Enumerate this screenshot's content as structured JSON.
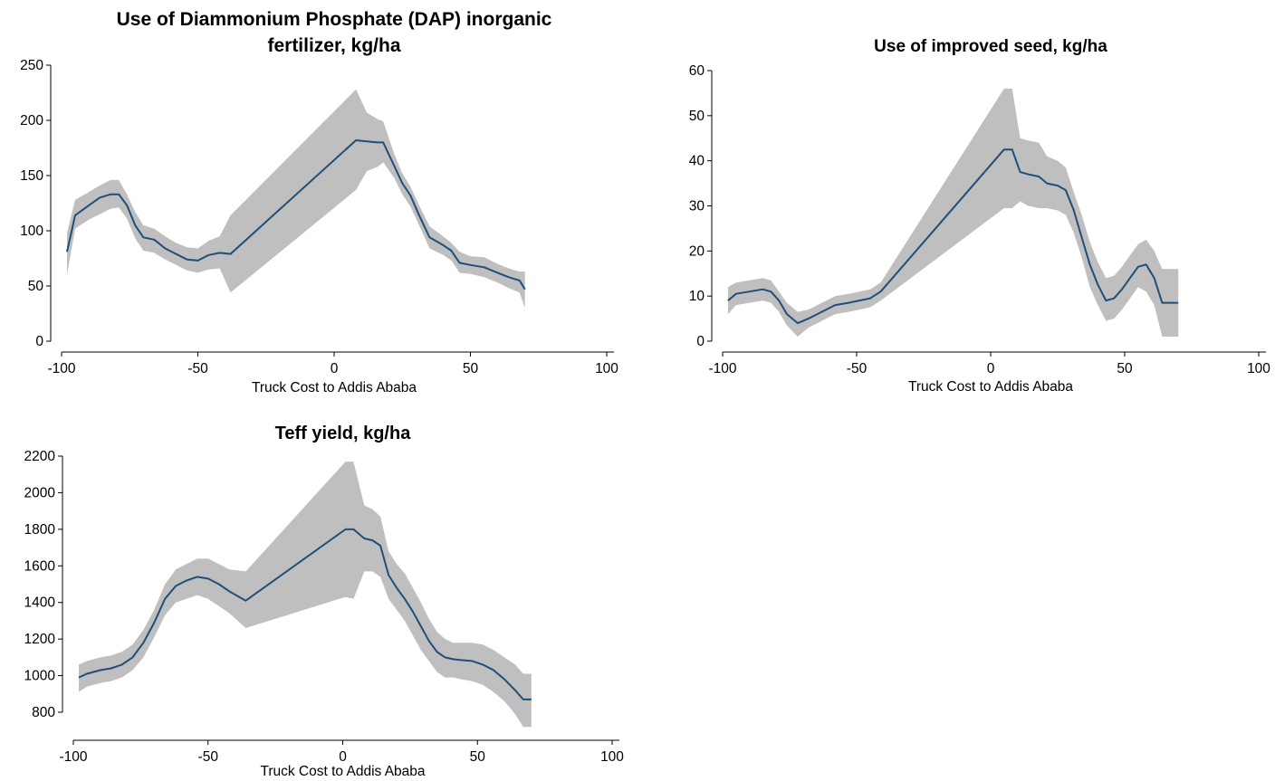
{
  "chart_data": [
    {
      "type": "line",
      "title_lines": [
        "Use of Diammonium Phosphate (DAP) inorganic",
        "fertilizer, kg/ha"
      ],
      "xlabel": "Truck Cost to Addis Ababa",
      "ylabel": "",
      "xlim": [
        -100,
        100
      ],
      "ylim": [
        0,
        250
      ],
      "xticks": [
        -100,
        -50,
        0,
        50,
        100
      ],
      "yticks": [
        0,
        50,
        100,
        150,
        200,
        250
      ],
      "grid": false,
      "colors": {
        "line": "#1f4e79",
        "band": "#bfbfbf"
      },
      "series": [
        {
          "x": [
            -98,
            -95,
            -90,
            -86,
            -82,
            -79,
            -76,
            -73,
            -70,
            -66,
            -62,
            -58,
            -54,
            -50,
            -46,
            -42,
            -38,
            8,
            12,
            16,
            18,
            22,
            25,
            28,
            31,
            35,
            40,
            43,
            46,
            50,
            55,
            60,
            64,
            68,
            70
          ],
          "y": [
            81,
            114,
            123,
            130,
            133,
            133,
            123,
            105,
            94,
            92,
            84,
            79,
            74,
            73,
            78,
            80,
            79,
            182,
            181,
            180,
            180,
            159,
            143,
            132,
            115,
            94,
            87,
            82,
            71,
            69,
            67,
            62,
            58,
            55,
            47
          ],
          "upper": [
            98,
            128,
            135,
            141,
            146,
            146,
            133,
            117,
            105,
            102,
            95,
            89,
            85,
            84,
            91,
            95,
            114,
            228,
            207,
            201,
            199,
            170,
            152,
            140,
            124,
            104,
            95,
            89,
            81,
            77,
            76,
            70,
            66,
            63,
            63
          ],
          "lower": [
            60,
            102,
            110,
            115,
            120,
            121,
            111,
            93,
            82,
            80,
            74,
            69,
            64,
            62,
            65,
            66,
            44,
            137,
            154,
            158,
            162,
            148,
            133,
            122,
            106,
            84,
            78,
            73,
            62,
            61,
            58,
            53,
            48,
            44,
            30
          ]
        }
      ]
    },
    {
      "type": "line",
      "title_lines": [
        "Use of improved seed, kg/ha"
      ],
      "xlabel": "Truck Cost to Addis Ababa",
      "ylabel": "",
      "xlim": [
        -100,
        100
      ],
      "ylim": [
        0,
        60
      ],
      "xticks": [
        -100,
        -50,
        0,
        50,
        100
      ],
      "yticks": [
        0,
        10,
        20,
        30,
        40,
        50,
        60
      ],
      "grid": false,
      "colors": {
        "line": "#1f4e79",
        "band": "#bfbfbf"
      },
      "series": [
        {
          "x": [
            -98,
            -95,
            -90,
            -85,
            -82,
            -79,
            -76,
            -72,
            -68,
            -63,
            -58,
            -53,
            -49,
            -45,
            -41,
            5,
            8,
            11,
            14,
            18,
            21,
            25,
            28,
            31,
            34,
            37,
            40,
            43,
            46,
            49,
            52,
            55,
            58,
            61,
            64,
            67,
            70
          ],
          "y": [
            9,
            10.5,
            11,
            11.5,
            11,
            9,
            6,
            4,
            5,
            6.5,
            8,
            8.5,
            9,
            9.5,
            11,
            42.5,
            42.5,
            37.5,
            37,
            36.5,
            35,
            34.5,
            33.5,
            29,
            23,
            17,
            12.5,
            9,
            9.5,
            11.5,
            14,
            16.5,
            17,
            14,
            8.5,
            8.5,
            8.5
          ],
          "upper": [
            12,
            13,
            13.5,
            14,
            13.5,
            11,
            8.5,
            6.5,
            7,
            8.5,
            10,
            10.5,
            11,
            11.5,
            13,
            56,
            56,
            45,
            44.5,
            44,
            41,
            40,
            38.5,
            33,
            28,
            22,
            17.5,
            14,
            14.5,
            16.5,
            19,
            21.5,
            22.5,
            20,
            16,
            16,
            16
          ],
          "lower": [
            6,
            8,
            8.5,
            9,
            8.5,
            6.5,
            3.5,
            1,
            3,
            4.5,
            6,
            6.5,
            7,
            7.5,
            9,
            29.5,
            29.5,
            31,
            30,
            29.5,
            29.5,
            29,
            28,
            24,
            18.5,
            12,
            8,
            4.5,
            5,
            7,
            9.5,
            12,
            11,
            8,
            1,
            1,
            1
          ]
        }
      ]
    },
    {
      "type": "line",
      "title_lines": [
        "Teff yield, kg/ha"
      ],
      "xlabel": "Truck Cost to Addis Ababa",
      "ylabel": "",
      "xlim": [
        -100,
        100
      ],
      "ylim": [
        800,
        2200
      ],
      "xticks": [
        -100,
        -50,
        0,
        50,
        100
      ],
      "yticks": [
        800,
        1000,
        1200,
        1400,
        1600,
        1800,
        2000,
        2200
      ],
      "grid": false,
      "colors": {
        "line": "#1f4e79",
        "band": "#bfbfbf"
      },
      "series": [
        {
          "x": [
            -98,
            -95,
            -90,
            -86,
            -82,
            -78,
            -74,
            -70,
            -66,
            -62,
            -58,
            -54,
            -50,
            -46,
            -42,
            -36,
            1,
            4,
            8,
            11,
            14,
            17,
            20,
            23,
            26,
            29,
            32,
            35,
            38,
            41,
            44,
            48,
            52,
            56,
            60,
            64,
            67,
            70
          ],
          "y": [
            990,
            1010,
            1030,
            1040,
            1060,
            1100,
            1180,
            1290,
            1420,
            1490,
            1520,
            1540,
            1530,
            1500,
            1460,
            1410,
            1800,
            1800,
            1750,
            1740,
            1710,
            1550,
            1480,
            1420,
            1350,
            1270,
            1190,
            1130,
            1100,
            1090,
            1085,
            1080,
            1060,
            1030,
            980,
            920,
            870,
            870
          ],
          "upper": [
            1060,
            1080,
            1100,
            1110,
            1130,
            1170,
            1250,
            1360,
            1500,
            1580,
            1610,
            1640,
            1640,
            1610,
            1580,
            1570,
            2170,
            2170,
            1930,
            1910,
            1870,
            1680,
            1610,
            1560,
            1480,
            1400,
            1310,
            1240,
            1200,
            1180,
            1180,
            1180,
            1170,
            1140,
            1100,
            1060,
            1010,
            1010
          ],
          "lower": [
            910,
            940,
            960,
            970,
            990,
            1030,
            1100,
            1210,
            1330,
            1400,
            1420,
            1440,
            1420,
            1380,
            1340,
            1260,
            1430,
            1420,
            1570,
            1570,
            1540,
            1420,
            1360,
            1300,
            1220,
            1140,
            1080,
            1020,
            990,
            990,
            980,
            970,
            950,
            910,
            860,
            790,
            720,
            720
          ]
        }
      ]
    }
  ]
}
